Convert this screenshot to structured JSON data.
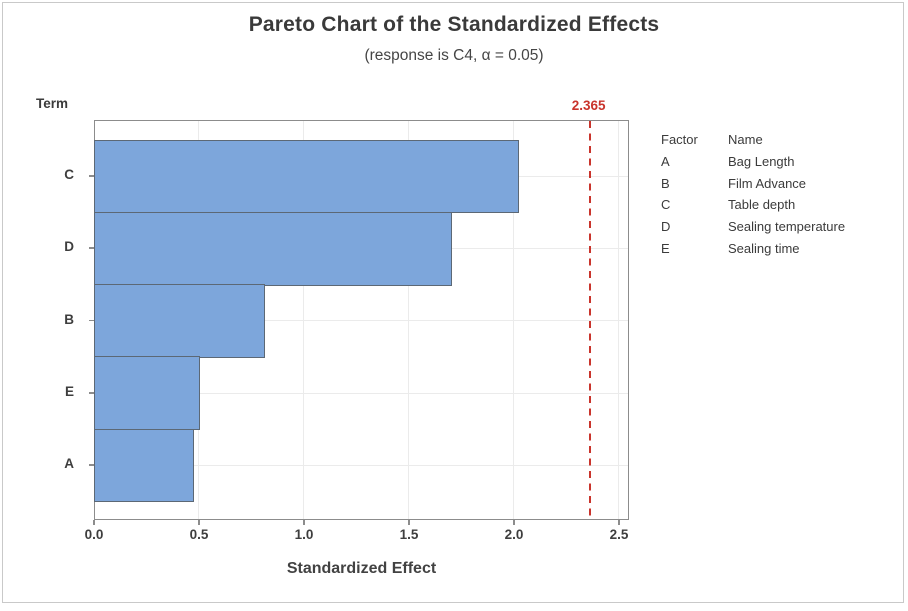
{
  "chart_data": {
    "type": "bar",
    "orientation": "horizontal",
    "title": "Pareto Chart of the Standardized Effects",
    "subtitle": "(response is C4, α = 0.05)",
    "xlabel": "Standardized Effect",
    "ylabel": "Term",
    "categories": [
      "C",
      "D",
      "B",
      "E",
      "A"
    ],
    "values": [
      2.02,
      1.7,
      0.81,
      0.5,
      0.47
    ],
    "xlim": [
      0,
      2.55
    ],
    "xticks": [
      0.0,
      0.5,
      1.0,
      1.5,
      2.0,
      2.5
    ],
    "xtick_labels": [
      "0.0",
      "0.5",
      "1.0",
      "1.5",
      "2.0",
      "2.5"
    ],
    "grid": true,
    "legend_position": "right",
    "reference_line": {
      "value": 2.365,
      "label": "2.365",
      "color": "#c9342c"
    },
    "bar_fill": "#7da6db",
    "bar_border": "#5c6875"
  },
  "legend": {
    "col1_header": "Factor",
    "col2_header": "Name",
    "rows": [
      {
        "factor": "A",
        "name": "Bag Length"
      },
      {
        "factor": "B",
        "name": "Film Advance"
      },
      {
        "factor": "C",
        "name": "Table depth"
      },
      {
        "factor": "D",
        "name": "Sealing temperature"
      },
      {
        "factor": "E",
        "name": "Sealing time"
      }
    ]
  }
}
